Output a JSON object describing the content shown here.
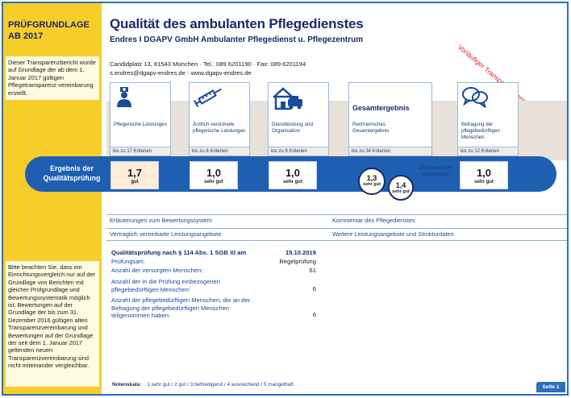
{
  "sidebar": {
    "heading": "PRÜFGRUNDLAGE AB 2017",
    "info_top": "Dieser Transparenzbericht wurde auf Grundlage der ab dem 1. Januar 2017 gültigen Pflegetransparenz-vereinbarung erstellt.",
    "info_bottom": "Bitte beachten Sie, dass ein Einrichtungsvergleich nur auf der Grundlage von Berichten mit gleicher Prüfgrundlage und Bewertungssystematik möglich ist. Bewertungen auf der Grundlage der bis zum 31. Dezember 2016 gültigen alten Transparenzvereinbarung und Bewertungen auf der Grundlage der seit dem 1. Januar 2017 geltenden neuen Transparenzvereinbarung sind nicht miteinander vergleichbar."
  },
  "header": {
    "title": "Qualität des ambulanten Pflegedienstes",
    "subtitle": "Endres I DGAPV GmbH Ambulanter Pflegedienst u. Pflegezentrum",
    "address_line": "Candidplatz 13, 81543 München · Tel.: 089 6201190 · Fax: 089 6201194",
    "contact_line": "s.endres@dgapv-endres.de · www.dgapv-endres.de",
    "stamp": "Vorläufiger Transparenzbericht"
  },
  "categories": [
    {
      "label": "Pflegerische Leistungen",
      "criteria": "bis zu 17 Kriterien",
      "icon": "nurse-icon"
    },
    {
      "label": "Ärztlich verordnete pflegerische Leistungen",
      "criteria": "bis zu 8 Kriterien",
      "icon": "syringe-icon"
    },
    {
      "label": "Dienstleistung und Organisation",
      "criteria": "bis zu 9 Kriterien",
      "icon": "house-car-icon"
    },
    {
      "label": "Rechnerisches Gesamtergebnis",
      "criteria": "bis zu 34 Kriterien",
      "heading": "Gesamtergebnis"
    },
    {
      "label": "Befragung der pflegebedürftigen Menschen",
      "criteria": "bis zu 12 Kriterien",
      "icon": "speech-bubbles-icon"
    }
  ],
  "result": {
    "label": "Ergebnis der Qualitätsprüfung",
    "grades": [
      {
        "value": "1,7",
        "text": "gut"
      },
      {
        "value": "1,0",
        "text": "sehr gut"
      },
      {
        "value": "1,0",
        "text": "sehr gut"
      },
      {
        "value": "1,0",
        "text": "sehr gut"
      }
    ],
    "total": {
      "value": "1,3",
      "text": "sehr gut"
    },
    "state_avg": {
      "value": "1,4",
      "text": "sehr gut"
    },
    "state_avg_label": "Durchschnitt im Bundesland"
  },
  "links": {
    "a": "Erläuterungen zum Bewertungssystem",
    "b": "Kommentar des Pflegedienstes",
    "c": "Vertraglich vereinbarte Leistungsangebote",
    "d": "Weitere Leistungsangebote und Strukturdaten"
  },
  "details": {
    "heading": "Qualitätsprüfung nach § 114 Abs. 1 SGB XI am",
    "date": "15.10.2019",
    "rows": [
      {
        "label": "Prüfungsart:",
        "value": "Regelprüfung"
      },
      {
        "label": "Anzahl der versorgten Menschen:",
        "value": "61"
      },
      {
        "label": "Anzahl der in die Prüfung einbezogenen pflegebedürftigen Menschen:",
        "value": "6"
      },
      {
        "label": "Anzahl der pflegebedürftigen Menschen, die an der Befragung der pflegebedürftigen Menschen teilgenommen haben:",
        "value": "6"
      }
    ]
  },
  "footer": {
    "scale_label": "Notenskala:",
    "scale": "1 sehr gut / 2 gut / 3 befriedigend / 4 ausreichend / 5 mangelhaft",
    "page": "Seite 1"
  },
  "colors": {
    "accent": "#1f5fb2",
    "sidebar": "#f7cd2a",
    "stamp": "#d2282c"
  }
}
